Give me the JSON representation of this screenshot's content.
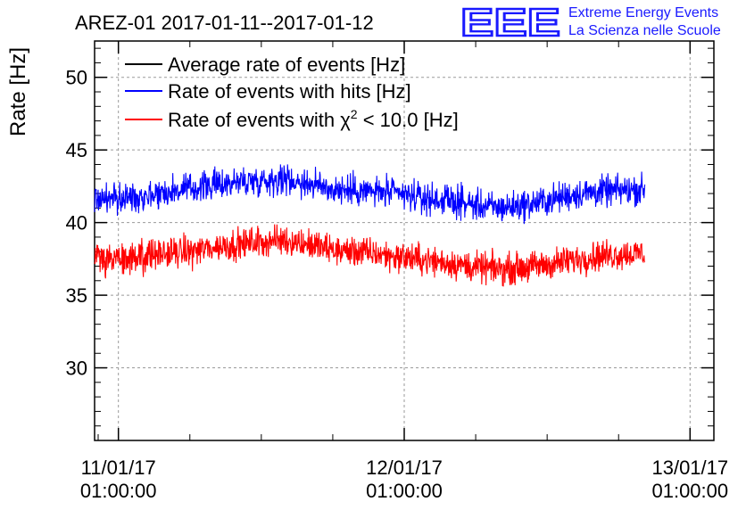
{
  "header": {
    "title": "AREZ-01 2017-01-11--2017-01-12",
    "logo_mark": "EEE",
    "logo_line1": "Extreme Energy Events",
    "logo_line2": "La Scienza nelle Scuole"
  },
  "chart_data": {
    "type": "line",
    "title": "AREZ-01 2017-01-11--2017-01-12",
    "xlabel": "",
    "ylabel": "Rate [Hz]",
    "ylim": [
      25,
      52.5
    ],
    "xlim_hours": [
      -2,
      50
    ],
    "yticks": [
      30,
      35,
      40,
      45,
      50
    ],
    "xticks": [
      {
        "hour": 0,
        "line1": "11/01/17",
        "line2": "01:00:00"
      },
      {
        "hour": 24,
        "line1": "12/01/17",
        "line2": "01:00:00"
      },
      {
        "hour": 48,
        "line1": "13/01/17",
        "line2": "01:00:00"
      }
    ],
    "grid": true,
    "legend_position": "top-left",
    "legend": [
      {
        "label": "Average rate of events [Hz]",
        "color": "#000000"
      },
      {
        "label": "Rate of events with hits [Hz]",
        "color": "#0000ff"
      },
      {
        "label_prefix": "Rate of events with ",
        "label_symbol": "χ",
        "label_sup": "2",
        "label_suffix": " < 10.0 [Hz]",
        "color": "#ff0000"
      }
    ],
    "x_range_hours": [
      -2,
      44.2
    ],
    "series": [
      {
        "name": "Rate of events with hits [Hz]",
        "color": "#0000ff",
        "x_hours": [
          -2,
          0,
          2,
          4,
          6,
          8,
          10,
          12,
          14,
          16,
          18,
          20,
          22,
          24,
          26,
          28,
          30,
          32,
          34,
          36,
          38,
          40,
          42,
          44.2
        ],
        "values": [
          41.7,
          41.6,
          41.9,
          42.1,
          42.3,
          42.6,
          42.8,
          42.9,
          43.0,
          42.7,
          42.3,
          42.2,
          42.1,
          41.9,
          41.6,
          41.5,
          41.2,
          41.0,
          41.2,
          41.5,
          41.9,
          42.1,
          42.2,
          42.3
        ],
        "noise_amplitude": 0.9
      },
      {
        "name": "Rate of events with χ² < 10.0 [Hz]",
        "color": "#ff0000",
        "x_hours": [
          -2,
          0,
          2,
          4,
          6,
          8,
          10,
          12,
          14,
          16,
          18,
          20,
          22,
          24,
          26,
          28,
          30,
          32,
          34,
          36,
          38,
          40,
          42,
          44.2
        ],
        "values": [
          37.5,
          37.4,
          37.7,
          37.9,
          38.0,
          38.3,
          38.5,
          38.7,
          38.8,
          38.5,
          38.1,
          38.0,
          37.8,
          37.6,
          37.4,
          37.2,
          36.9,
          36.8,
          36.9,
          37.1,
          37.4,
          37.7,
          37.8,
          37.9
        ],
        "noise_amplitude": 0.9
      }
    ]
  }
}
